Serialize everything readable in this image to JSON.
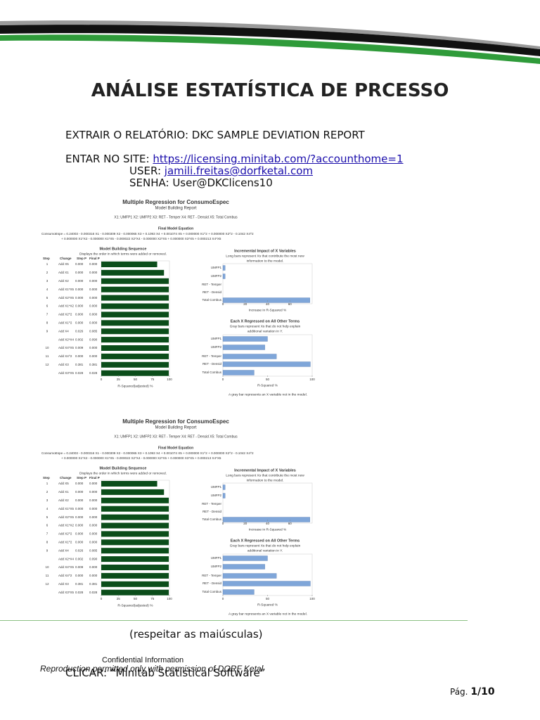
{
  "document": {
    "title": "ANÁLISE ESTATÍSTICA DE PRCESSO",
    "extract": "EXTRAIR O RELATÓRIO: DKC SAMPLE DEVIATION REPORT",
    "site": {
      "label": "ENTAR NO SITE:",
      "url": "https://licensing.minitab.com/?accounthome=1"
    },
    "user": {
      "label": "USER:",
      "email": "jamili.freitas@dorfketal.com"
    },
    "password": "SENHA: User@DKClicens10",
    "note": "(respeitar as maiúsculas)",
    "confidential": [
      "Confidential Information",
      "Reproduction permitted only with permission of DORF Ketal"
    ],
    "click": "CLICAR: “Minitab Statistical Software”",
    "page": {
      "label": "Pág.",
      "number": "1/10"
    }
  },
  "report": {
    "title": "Multiple Regression for ConsumoEspec",
    "subtitle": "Model Building Report",
    "variables": "X1: UMFP1   X2: UMFP2   X3: RET - Temper   X4: RET - Densid   X5: Total Combus",
    "equation_title": "Final Model Equation",
    "equation": [
      "ConsumoEspe  =  0.24003 - 0.000316 X1 - 0.000309 X2 - 0.000065 X3 + 0.1093 X4 + 0.001074 X5 + 0.000000 X1^2 + 0.000000 X2^2 - 0.1042 X4^2",
      "+ 0.000000 X1*X2 - 0.000000 X1*X5 - 0.000022 X2*X4 - 0.000000 X2*X5 + 0.000000 X3*X5 + 0.000213 X4*X5"
    ],
    "sequence": {
      "title": "Model Building Sequence",
      "subtitle": "Displays the order in which terms were added or removed.",
      "headers": [
        "Step",
        "Change",
        "Step P",
        "Final P"
      ],
      "color": "#0b4d1a",
      "rows": [
        {
          "step": 1,
          "change": "Add X5",
          "step_p": "0.000",
          "final_p": "0.000",
          "value": 82
        },
        {
          "step": 2,
          "change": "Add X1",
          "step_p": "0.000",
          "final_p": "0.000",
          "value": 92
        },
        {
          "step": 3,
          "change": "Add X2",
          "step_p": "0.000",
          "final_p": "0.000",
          "value": 99
        },
        {
          "step": 4,
          "change": "Add X1*X5",
          "step_p": "0.000",
          "final_p": "0.000",
          "value": 99
        },
        {
          "step": 5,
          "change": "Add X2*X5",
          "step_p": "0.000",
          "final_p": "0.000",
          "value": 99
        },
        {
          "step": 6,
          "change": "Add X1*X2",
          "step_p": "0.000",
          "final_p": "0.000",
          "value": 99
        },
        {
          "step": 7,
          "change": "Add X2^2",
          "step_p": "0.000",
          "final_p": "0.000",
          "value": 99
        },
        {
          "step": 8,
          "change": "Add X1^2",
          "step_p": "0.000",
          "final_p": "0.000",
          "value": 99
        },
        {
          "step": 9,
          "change": "Add X4",
          "step_p": "0.026",
          "final_p": "0.085",
          "value": 99
        },
        {
          "step": null,
          "change": "Add X2*X4",
          "step_p": "0.002",
          "final_p": "0.090",
          "value": 99
        },
        {
          "step": 10,
          "change": "Add X4*X5",
          "step_p": "0.009",
          "final_p": "0.000",
          "value": 99
        },
        {
          "step": 11,
          "change": "Add X4^2",
          "step_p": "0.000",
          "final_p": "0.000",
          "value": 99
        },
        {
          "step": 12,
          "change": "Add X3",
          "step_p": "0.381",
          "final_p": "0.381",
          "value": 99
        },
        {
          "step": null,
          "change": "Add X3*X5",
          "step_p": "0.028",
          "final_p": "0.028",
          "value": 99
        }
      ],
      "xlim": [
        0,
        100
      ],
      "xticks": [
        0,
        25,
        50,
        75,
        100
      ],
      "xlabel": "R-Squared(adjusted) %"
    },
    "incremental": {
      "title": "Incremental Impact of X Variables",
      "subtitle": [
        "Long bars represent Xs that contribute the most new",
        "information to the model."
      ],
      "categories": [
        "UMFP1",
        "UMFP2",
        "RET - Temper",
        "RET - Densid",
        "Total Combus"
      ],
      "values": [
        2,
        2,
        0,
        0,
        78
      ],
      "color": "#7fa6d9",
      "xlim": [
        0,
        80
      ],
      "xticks": [
        0,
        20,
        40,
        60
      ],
      "xlabel": "Increase in R-Squared %"
    },
    "regressed": {
      "title": "Each X Regressed on All Other Terms",
      "subtitle": [
        "Gray bars represent Xs that do not help explain",
        "additional variation in Y."
      ],
      "categories": [
        "UMFP1",
        "UMFP2",
        "RET - Temper",
        "RET - Densid",
        "Total Combus"
      ],
      "values": [
        50,
        47,
        60,
        98,
        35
      ],
      "color": "#7fa6d9",
      "xlim": [
        0,
        100
      ],
      "xticks": [
        0,
        50,
        100
      ],
      "xlabel": "R-Squared %"
    },
    "footnote": "A gray bar represents an X variable not in the model."
  }
}
